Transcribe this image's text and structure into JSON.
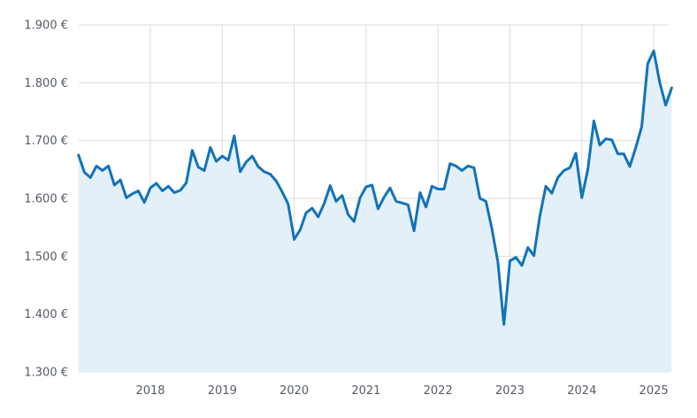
{
  "chart_data": {
    "type": "area",
    "title": "",
    "xlabel": "",
    "ylabel": "",
    "ylim": [
      1300,
      1900
    ],
    "y_ticks": [
      {
        "value": 1300,
        "label": "1.300 €"
      },
      {
        "value": 1400,
        "label": "1.400 €"
      },
      {
        "value": 1500,
        "label": "1.500 €"
      },
      {
        "value": 1600,
        "label": "1.600 €"
      },
      {
        "value": 1700,
        "label": "1.700 €"
      },
      {
        "value": 1800,
        "label": "1.800 €"
      },
      {
        "value": 1900,
        "label": "1.900 €"
      }
    ],
    "x_ticks": [
      "2018",
      "2019",
      "2020",
      "2021",
      "2022",
      "2023",
      "2024",
      "2025"
    ],
    "grid": true,
    "line_color": "#1273b9",
    "fill_color": "#e3f0f8",
    "grid_color": "#d9dde3",
    "series": [
      {
        "x": [
          "2017-01",
          "2017-02",
          "2017-03",
          "2017-04",
          "2017-05",
          "2017-06",
          "2017-07",
          "2017-08",
          "2017-09",
          "2017-10",
          "2017-11",
          "2017-12",
          "2018-01",
          "2018-02",
          "2018-03",
          "2018-04",
          "2018-05",
          "2018-06",
          "2018-07",
          "2018-08",
          "2018-09",
          "2018-10",
          "2018-11",
          "2018-12",
          "2019-01",
          "2019-02",
          "2019-03",
          "2019-04",
          "2019-05",
          "2019-06",
          "2019-07",
          "2019-08",
          "2019-09",
          "2019-10",
          "2019-11",
          "2019-12",
          "2020-01",
          "2020-02",
          "2020-03",
          "2020-04",
          "2020-05",
          "2020-06",
          "2020-07",
          "2020-08",
          "2020-09",
          "2020-10",
          "2020-11",
          "2020-12",
          "2021-01",
          "2021-02",
          "2021-03",
          "2021-04",
          "2021-05",
          "2021-06",
          "2021-07",
          "2021-08",
          "2021-09",
          "2021-10",
          "2021-11",
          "2021-12",
          "2022-01",
          "2022-02",
          "2022-03",
          "2022-04",
          "2022-05",
          "2022-06",
          "2022-07",
          "2022-08",
          "2022-09",
          "2022-10",
          "2022-11",
          "2022-12",
          "2023-01",
          "2023-02",
          "2023-03",
          "2023-04",
          "2023-05",
          "2023-06",
          "2023-07",
          "2023-08",
          "2023-09",
          "2023-10",
          "2023-11",
          "2023-12",
          "2024-01",
          "2024-02",
          "2024-03",
          "2024-04",
          "2024-05",
          "2024-06",
          "2024-07",
          "2024-08",
          "2024-09",
          "2024-10",
          "2024-11",
          "2024-12",
          "2025-01",
          "2025-02",
          "2025-03",
          "2025-04"
        ],
        "values": [
          1675,
          1645,
          1636,
          1656,
          1648,
          1656,
          1623,
          1632,
          1601,
          1608,
          1613,
          1593,
          1618,
          1626,
          1613,
          1621,
          1610,
          1614,
          1627,
          1683,
          1654,
          1648,
          1688,
          1664,
          1673,
          1666,
          1708,
          1646,
          1663,
          1673,
          1655,
          1646,
          1642,
          1630,
          1611,
          1590,
          1529,
          1546,
          1575,
          1583,
          1568,
          1591,
          1622,
          1595,
          1605,
          1572,
          1560,
          1601,
          1620,
          1623,
          1582,
          1602,
          1618,
          1595,
          1592,
          1589,
          1544,
          1610,
          1585,
          1621,
          1616,
          1616,
          1660,
          1656,
          1648,
          1656,
          1653,
          1600,
          1595,
          1547,
          1490,
          1382,
          1492,
          1498,
          1484,
          1515,
          1501,
          1570,
          1621,
          1609,
          1636,
          1648,
          1653,
          1678,
          1601,
          1650,
          1734,
          1692,
          1703,
          1701,
          1677,
          1677,
          1655,
          1688,
          1724,
          1833,
          1855,
          1800,
          1761,
          1791
        ]
      }
    ]
  }
}
